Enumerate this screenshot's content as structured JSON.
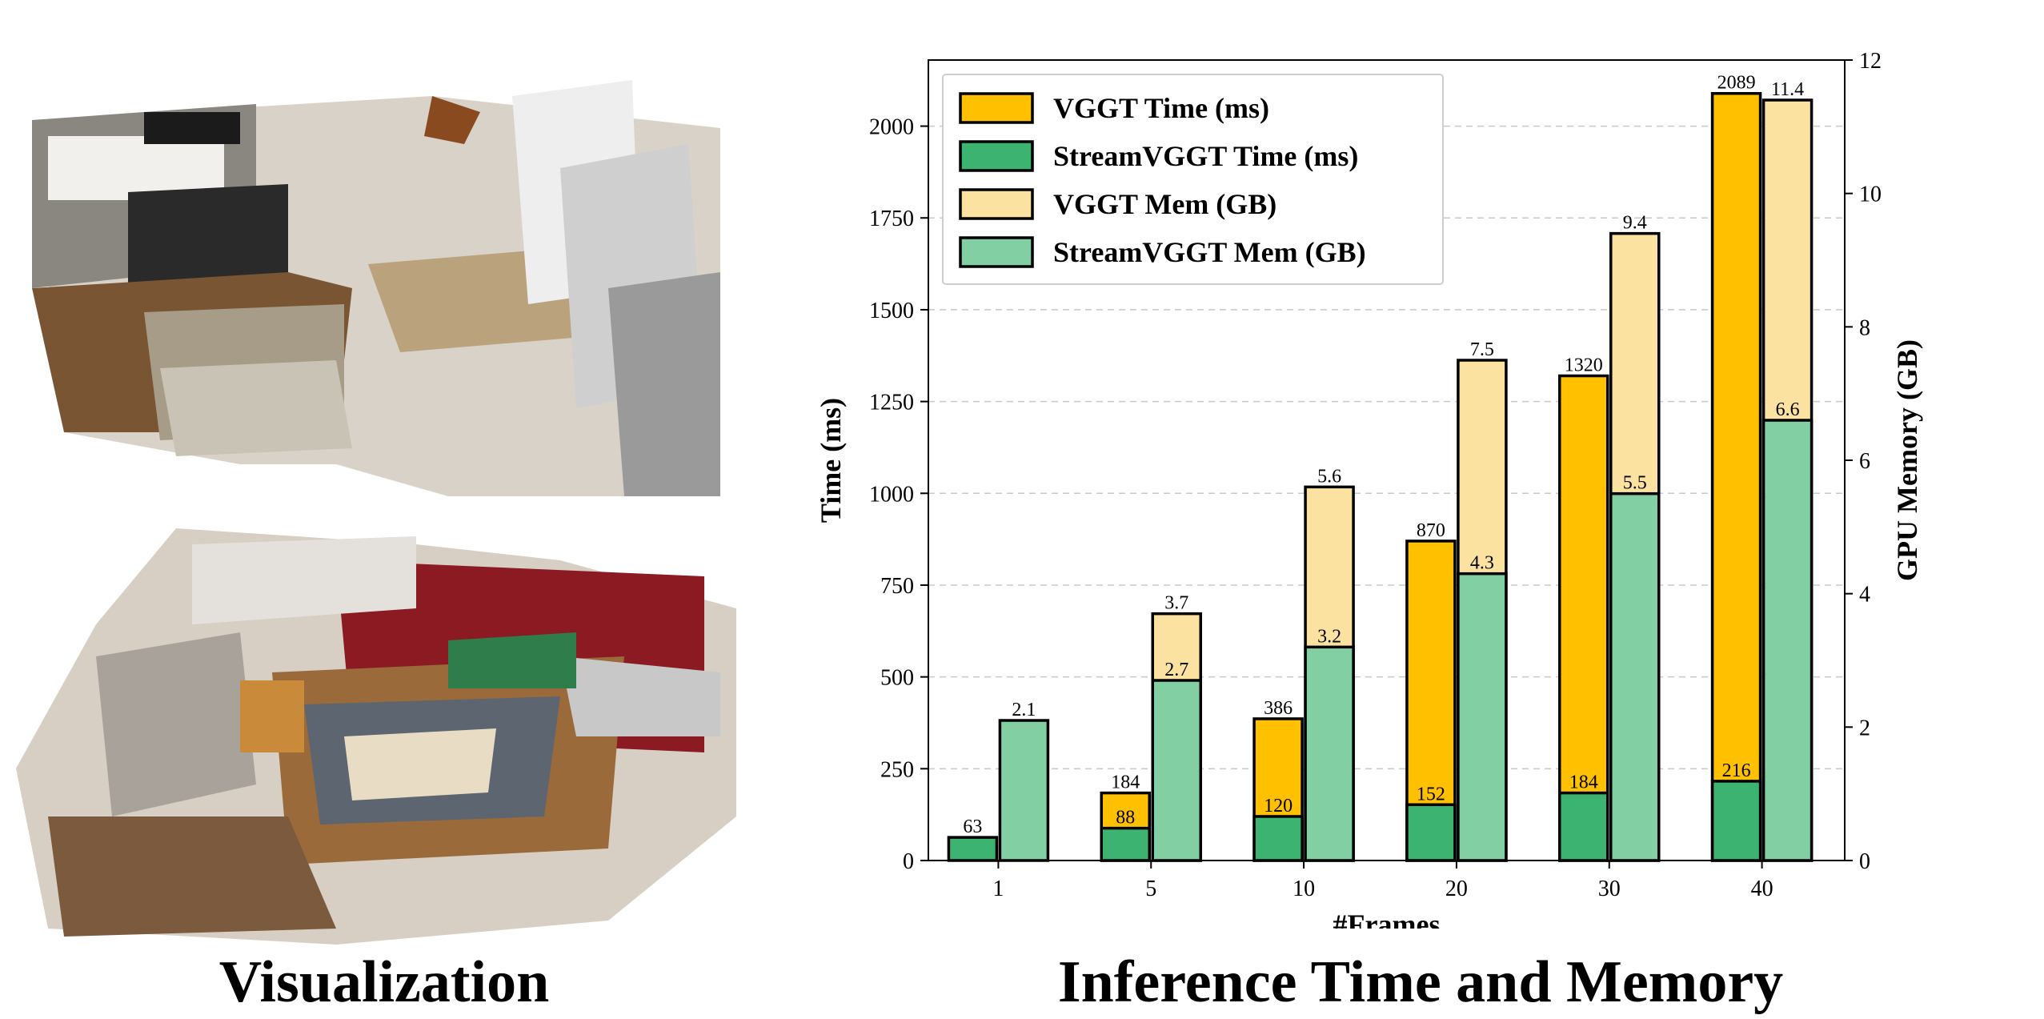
{
  "captions": {
    "left": "Visualization",
    "right": "Inference Time and Memory"
  },
  "colors": {
    "vggt_time": "#FFC000",
    "streamvggt_time": "#3CB371",
    "vggt_mem": "#FCE2A1",
    "streamvggt_mem": "#82CFA4"
  },
  "chart_data": {
    "type": "bar",
    "title": "",
    "xlabel": "#Frames",
    "ylabel": "Time (ms)",
    "y2label": "GPU Memory (GB)",
    "categories": [
      "1",
      "5",
      "10",
      "20",
      "30",
      "40"
    ],
    "ylim": [
      0,
      2180
    ],
    "y2lim": [
      0,
      12
    ],
    "yticks": [
      0,
      250,
      500,
      750,
      1000,
      1250,
      1500,
      1750,
      2000
    ],
    "y2ticks": [
      0,
      2,
      4,
      6,
      8,
      10,
      12
    ],
    "grid": "horizontal dashed",
    "legend_position": "top-left",
    "series": [
      {
        "name": "VGGT Time (ms)",
        "axis": "left",
        "values": [
          null,
          184,
          386,
          870,
          1320,
          2089
        ],
        "labels": [
          "",
          "184",
          "386",
          "870",
          "1320",
          "2089"
        ]
      },
      {
        "name": "StreamVGGT Time (ms)",
        "axis": "left",
        "values": [
          63,
          88,
          120,
          152,
          184,
          216
        ],
        "labels": [
          "63",
          "88",
          "120",
          "152",
          "184",
          "216"
        ]
      },
      {
        "name": "VGGT Mem (GB)",
        "axis": "right",
        "values": [
          null,
          3.7,
          5.6,
          7.5,
          9.4,
          11.4
        ],
        "labels": [
          "",
          "3.7",
          "5.6",
          "7.5",
          "9.4",
          "11.4"
        ]
      },
      {
        "name": "StreamVGGT Mem (GB)",
        "axis": "right",
        "values": [
          2.1,
          2.7,
          3.2,
          4.3,
          5.5,
          6.6
        ],
        "labels": [
          "2.1",
          "2.7",
          "3.2",
          "4.3",
          "5.5",
          "6.6"
        ]
      }
    ]
  }
}
